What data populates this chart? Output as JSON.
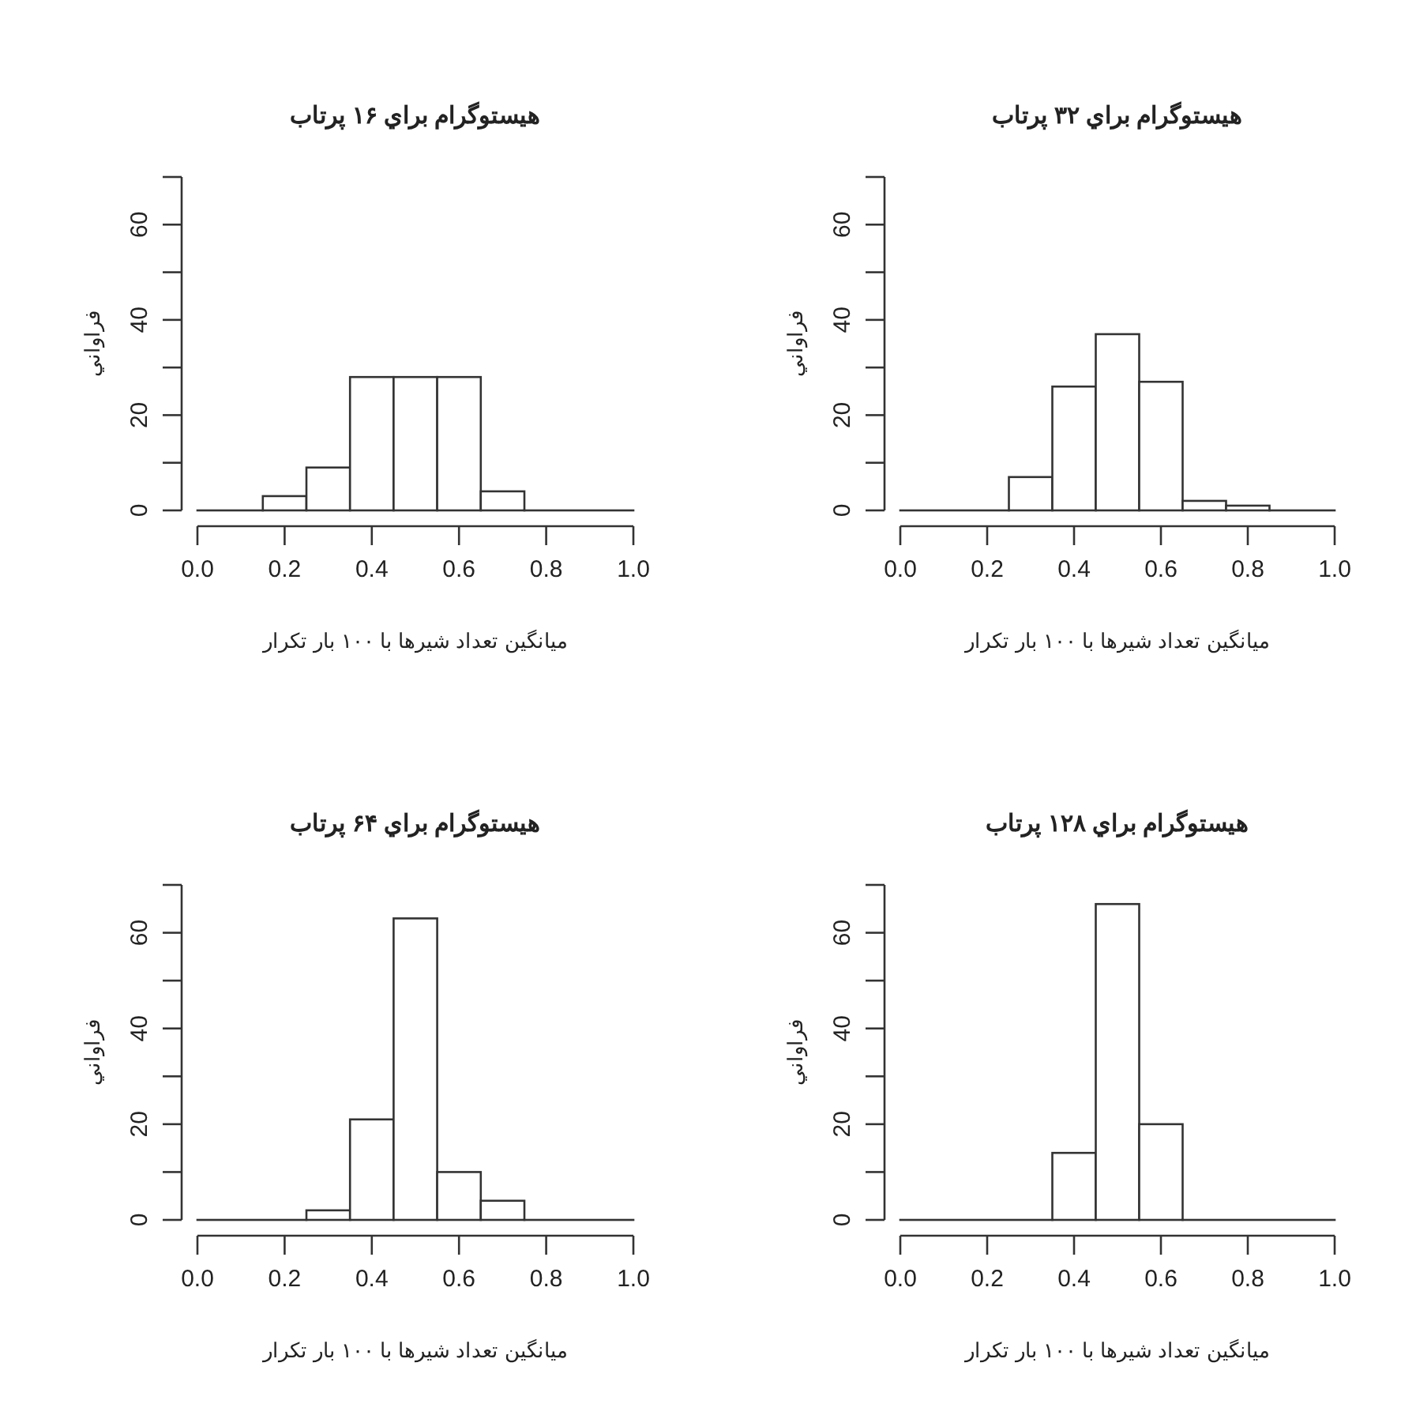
{
  "chart_data": [
    {
      "type": "histogram",
      "title": "هيستوگرام براي ۱۶ پرتاب",
      "xlabel": "ميانگين تعداد شيرها با ۱۰۰ بار تکرار",
      "ylabel": "فراواني",
      "bins": [
        0,
        0.15,
        0.25,
        0.35,
        0.45,
        0.55,
        0.65,
        0.75,
        1.0
      ],
      "values": [
        0,
        3,
        9,
        28,
        28,
        28,
        4,
        0
      ],
      "color": "#ffffff",
      "xlim": [
        0,
        1
      ],
      "ylim": [
        0,
        70
      ],
      "xticks": [
        {
          "value": 0,
          "label": "0.0"
        },
        {
          "value": 0.2,
          "label": "0.2"
        },
        {
          "value": 0.4,
          "label": "0.4"
        },
        {
          "value": 0.6,
          "label": "0.6"
        },
        {
          "value": 0.8,
          "label": "0.8"
        },
        {
          "value": 1,
          "label": "1.0"
        }
      ],
      "yticks": [
        0,
        {
          "value": 10,
          "label": null
        },
        20,
        {
          "value": 30,
          "label": null
        },
        40,
        {
          "value": 50,
          "label": null
        },
        60,
        {
          "value": 70,
          "label": null
        }
      ]
    },
    {
      "type": "histogram",
      "title": "هيستوگرام براي ۳۲ پرتاب",
      "xlabel": "ميانگين تعداد شيرها با ۱۰۰ بار تکرار",
      "ylabel": "فراواني",
      "bins": [
        0,
        0.25,
        0.35,
        0.45,
        0.55,
        0.65,
        0.75,
        0.85,
        1.0
      ],
      "values": [
        0,
        7,
        26,
        37,
        27,
        2,
        1,
        0
      ],
      "color": "#ffffff",
      "xlim": [
        0,
        1
      ],
      "ylim": [
        0,
        70
      ],
      "xticks": [
        {
          "value": 0,
          "label": "0.0"
        },
        {
          "value": 0.2,
          "label": "0.2"
        },
        {
          "value": 0.4,
          "label": "0.4"
        },
        {
          "value": 0.6,
          "label": "0.6"
        },
        {
          "value": 0.8,
          "label": "0.8"
        },
        {
          "value": 1,
          "label": "1.0"
        }
      ],
      "yticks": [
        0,
        {
          "value": 10,
          "label": null
        },
        20,
        {
          "value": 30,
          "label": null
        },
        40,
        {
          "value": 50,
          "label": null
        },
        60,
        {
          "value": 70,
          "label": null
        }
      ]
    },
    {
      "type": "histogram",
      "title": "هيستوگرام براي ۶۴ پرتاب",
      "xlabel": "ميانگين تعداد شيرها با ۱۰۰ بار تکرار",
      "ylabel": "فراواني",
      "bins": [
        0,
        0.25,
        0.35,
        0.45,
        0.55,
        0.65,
        0.75,
        1.0
      ],
      "values": [
        0,
        2,
        21,
        63,
        10,
        4,
        0
      ],
      "color": "#ffffff",
      "xlim": [
        0,
        1
      ],
      "ylim": [
        0,
        70
      ],
      "xticks": [
        {
          "value": 0,
          "label": "0.0"
        },
        {
          "value": 0.2,
          "label": "0.2"
        },
        {
          "value": 0.4,
          "label": "0.4"
        },
        {
          "value": 0.6,
          "label": "0.6"
        },
        {
          "value": 0.8,
          "label": "0.8"
        },
        {
          "value": 1,
          "label": "1.0"
        }
      ],
      "yticks": [
        0,
        {
          "value": 10,
          "label": null
        },
        20,
        {
          "value": 30,
          "label": null
        },
        40,
        {
          "value": 50,
          "label": null
        },
        60,
        {
          "value": 70,
          "label": null
        }
      ]
    },
    {
      "type": "histogram",
      "title": "هيستوگرام براي ۱۲۸ پرتاب",
      "xlabel": "ميانگين تعداد شيرها با ۱۰۰ بار تکرار",
      "ylabel": "فراواني",
      "bins": [
        0,
        0.35,
        0.45,
        0.55,
        0.65,
        1.0
      ],
      "values": [
        0,
        14,
        66,
        20,
        0
      ],
      "color": "#ffffff",
      "xlim": [
        0,
        1
      ],
      "ylim": [
        0,
        70
      ],
      "xticks": [
        {
          "value": 0,
          "label": "0.0"
        },
        {
          "value": 0.2,
          "label": "0.2"
        },
        {
          "value": 0.4,
          "label": "0.4"
        },
        {
          "value": 0.6,
          "label": "0.6"
        },
        {
          "value": 0.8,
          "label": "0.8"
        },
        {
          "value": 1,
          "label": "1.0"
        }
      ],
      "yticks": [
        0,
        {
          "value": 10,
          "label": null
        },
        20,
        {
          "value": 30,
          "label": null
        },
        40,
        {
          "value": 50,
          "label": null
        },
        60,
        {
          "value": 70,
          "label": null
        }
      ]
    }
  ]
}
